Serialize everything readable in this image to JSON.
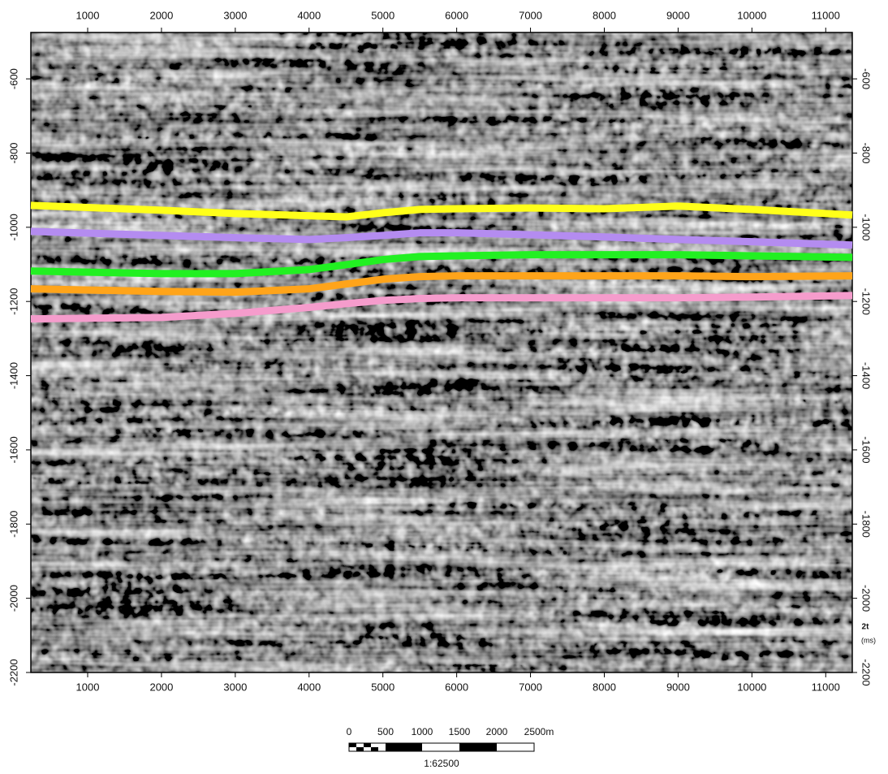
{
  "chart_data": {
    "type": "line",
    "x": [
      230,
      2000,
      3000,
      4000,
      4500,
      5000,
      5500,
      6000,
      7000,
      8000,
      9000,
      10000,
      11360
    ],
    "xlim": [
      230,
      11360
    ],
    "xticks": [
      1000,
      2000,
      3000,
      4000,
      5000,
      6000,
      7000,
      8000,
      9000,
      10000,
      11000
    ],
    "ylim": [
      -2200,
      -475
    ],
    "yticks": [
      -600,
      -800,
      -1000,
      -1200,
      -1400,
      -1600,
      -1800,
      -2000,
      -2200
    ],
    "y_axis_label": "2t",
    "y_axis_unit": "(ms)",
    "series": [
      {
        "color": "#ffff1a",
        "values": [
          -941,
          -954,
          -963,
          -969,
          -972,
          -961,
          -952,
          -950,
          -948,
          -950,
          -943,
          -952,
          -967
        ]
      },
      {
        "color": "#b48cf0",
        "values": [
          -1011,
          -1022,
          -1028,
          -1033,
          -1028,
          -1022,
          -1015,
          -1015,
          -1020,
          -1026,
          -1033,
          -1039,
          -1048
        ]
      },
      {
        "color": "#22f022",
        "values": [
          -1118,
          -1125,
          -1125,
          -1114,
          -1101,
          -1087,
          -1079,
          -1077,
          -1074,
          -1074,
          -1074,
          -1077,
          -1081
        ]
      },
      {
        "color": "#ffa41a",
        "values": [
          -1166,
          -1173,
          -1175,
          -1166,
          -1153,
          -1140,
          -1133,
          -1131,
          -1131,
          -1131,
          -1131,
          -1133,
          -1131
        ]
      },
      {
        "color": "#f59ccc",
        "values": [
          -1247,
          -1243,
          -1232,
          -1216,
          -1206,
          -1197,
          -1192,
          -1190,
          -1190,
          -1190,
          -1190,
          -1188,
          -1184
        ]
      }
    ],
    "scale_bar": {
      "labels": [
        "0",
        "500",
        "1000",
        "1500",
        "2000",
        "2500m"
      ],
      "ratio": "1:62500"
    }
  }
}
